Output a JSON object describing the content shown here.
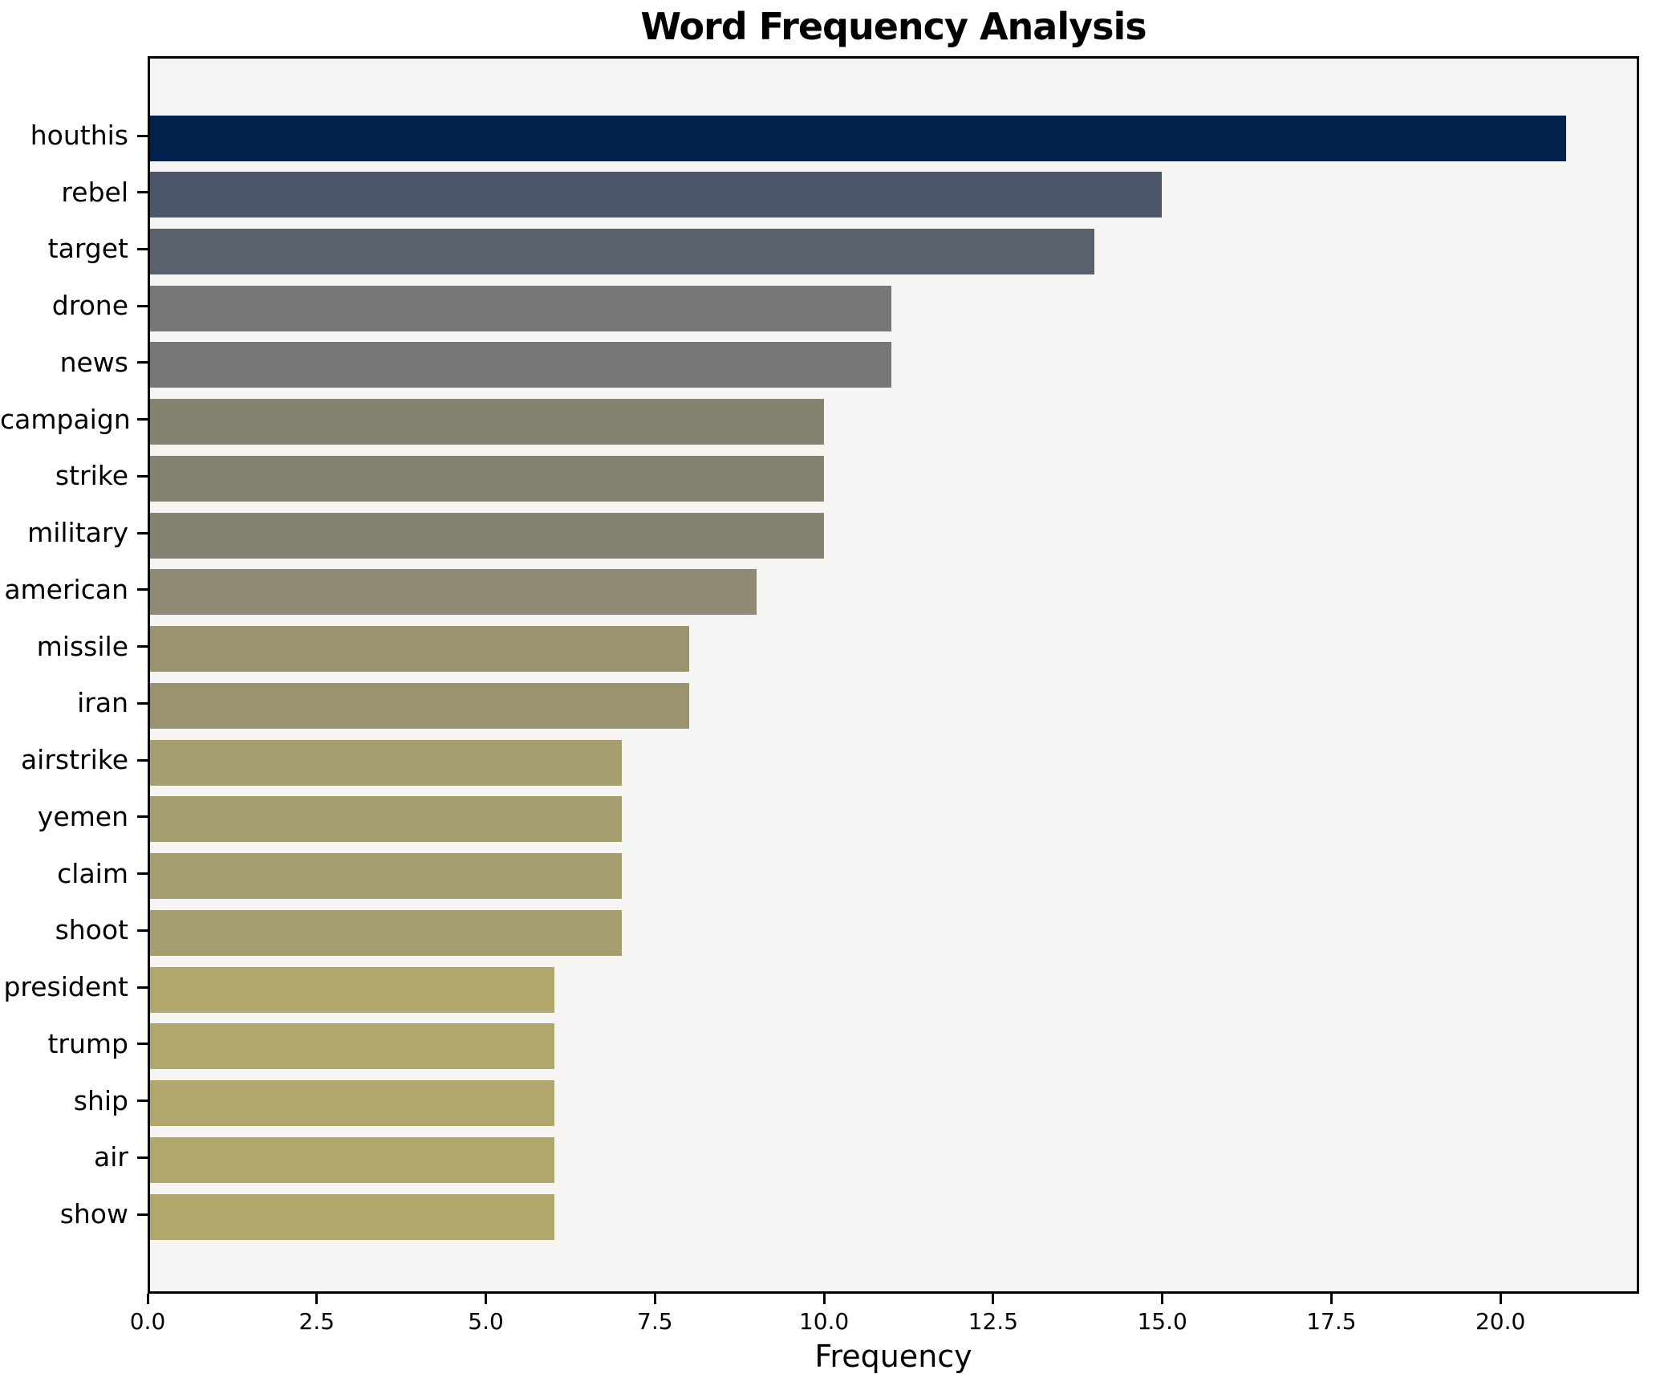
{
  "chart_data": {
    "type": "bar",
    "orientation": "horizontal",
    "title": "Word Frequency Analysis",
    "xlabel": "Frequency",
    "ylabel": "",
    "categories": [
      "houthis",
      "rebel",
      "target",
      "drone",
      "news",
      "campaign",
      "strike",
      "military",
      "american",
      "missile",
      "iran",
      "airstrike",
      "yemen",
      "claim",
      "shoot",
      "president",
      "trump",
      "ship",
      "air",
      "show"
    ],
    "values": [
      21,
      15,
      14,
      11,
      11,
      10,
      10,
      10,
      9,
      8,
      8,
      7,
      7,
      7,
      7,
      6,
      6,
      6,
      6,
      6
    ],
    "bar_colors": [
      "#02224e",
      "#4d5569",
      "#59606e",
      "#777876",
      "#777876",
      "#858270",
      "#858270",
      "#858270",
      "#908b74",
      "#9b9270",
      "#9b9270",
      "#a69d70",
      "#a69d70",
      "#a69d70",
      "#a69d70",
      "#b1a76c",
      "#b1a76c",
      "#b1a76c",
      "#b1a76c",
      "#b1a76c"
    ],
    "xlim": [
      0,
      22.05
    ],
    "xtick_labels": [
      "0.0",
      "2.5",
      "5.0",
      "7.5",
      "10.0",
      "12.5",
      "15.0",
      "17.5",
      "20.0"
    ],
    "grid": false,
    "legend": "none",
    "plot_background": "#f6f5f3",
    "figure_background": "#ffffff",
    "spine_color": "#000000"
  }
}
